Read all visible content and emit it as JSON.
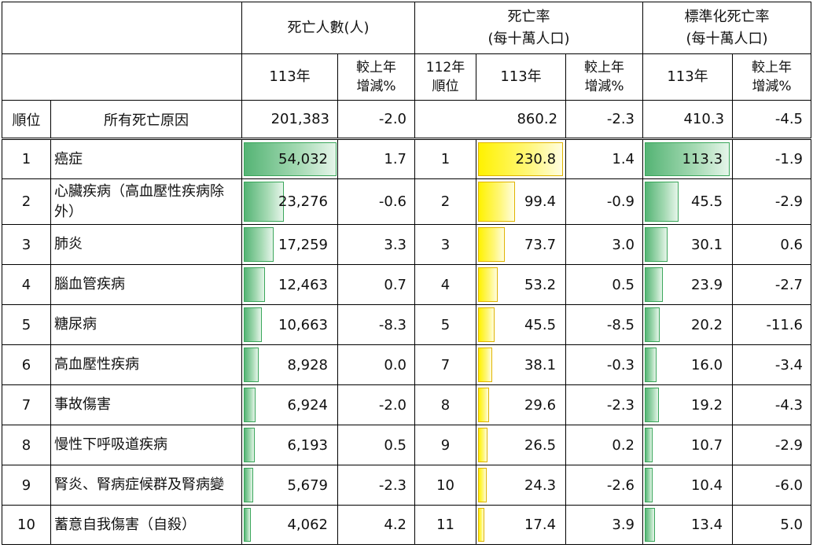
{
  "headers": {
    "deaths": "死亡人數(人)",
    "rate_line1": "死亡率",
    "rate_line2": "(每十萬人口)",
    "std_line1": "標準化死亡率",
    "std_line2": "(每十萬人口)",
    "year": "113年",
    "change_line1": "較上年",
    "change_line2": "增減%",
    "prev_rank_line1": "112年",
    "prev_rank_line2": "順位"
  },
  "total": {
    "rank_label": "順位",
    "cause_label": "所有死亡原因",
    "deaths": "201,383",
    "deaths_change": "-2.0",
    "rate": "860.2",
    "rate_change": "-2.3",
    "std_rate": "410.3",
    "std_change": "-4.5"
  },
  "rows": [
    {
      "rank": "1",
      "cause": "癌症",
      "deaths": "54,032",
      "deaths_change": "1.7",
      "prev_rank": "1",
      "rate": "230.8",
      "rate_change": "1.4",
      "std_rate": "113.3",
      "std_change": "-1.9"
    },
    {
      "rank": "2",
      "cause": "心臟疾病（高血壓性疾病除外）",
      "deaths": "23,276",
      "deaths_change": "-0.6",
      "prev_rank": "2",
      "rate": "99.4",
      "rate_change": "-0.9",
      "std_rate": "45.5",
      "std_change": "-2.9"
    },
    {
      "rank": "3",
      "cause": "肺炎",
      "deaths": "17,259",
      "deaths_change": "3.3",
      "prev_rank": "3",
      "rate": "73.7",
      "rate_change": "3.0",
      "std_rate": "30.1",
      "std_change": "0.6"
    },
    {
      "rank": "4",
      "cause": "腦血管疾病",
      "deaths": "12,463",
      "deaths_change": "0.7",
      "prev_rank": "4",
      "rate": "53.2",
      "rate_change": "0.5",
      "std_rate": "23.9",
      "std_change": "-2.7"
    },
    {
      "rank": "5",
      "cause": "糖尿病",
      "deaths": "10,663",
      "deaths_change": "-8.3",
      "prev_rank": "5",
      "rate": "45.5",
      "rate_change": "-8.5",
      "std_rate": "20.2",
      "std_change": "-11.6"
    },
    {
      "rank": "6",
      "cause": "高血壓性疾病",
      "deaths": "8,928",
      "deaths_change": "0.0",
      "prev_rank": "7",
      "rate": "38.1",
      "rate_change": "-0.3",
      "std_rate": "16.0",
      "std_change": "-3.4"
    },
    {
      "rank": "7",
      "cause": "事故傷害",
      "deaths": "6,924",
      "deaths_change": "-2.0",
      "prev_rank": "8",
      "rate": "29.6",
      "rate_change": "-2.3",
      "std_rate": "19.2",
      "std_change": "-4.3"
    },
    {
      "rank": "8",
      "cause": "慢性下呼吸道疾病",
      "deaths": "6,193",
      "deaths_change": "0.5",
      "prev_rank": "9",
      "rate": "26.5",
      "rate_change": "0.2",
      "std_rate": "10.7",
      "std_change": "-2.9"
    },
    {
      "rank": "9",
      "cause": "腎炎、腎病症候群及腎病變",
      "deaths": "5,679",
      "deaths_change": "-2.3",
      "prev_rank": "10",
      "rate": "24.3",
      "rate_change": "-2.6",
      "std_rate": "10.4",
      "std_change": "-6.0"
    },
    {
      "rank": "10",
      "cause": "蓄意自我傷害（自殺）",
      "deaths": "4,062",
      "deaths_change": "4.2",
      "prev_rank": "11",
      "rate": "17.4",
      "rate_change": "3.9",
      "std_rate": "13.4",
      "std_change": "5.0"
    }
  ],
  "bar_colors": {
    "deaths": "#55b475",
    "rate": "#fff200",
    "std_rate": "#55b475"
  }
}
